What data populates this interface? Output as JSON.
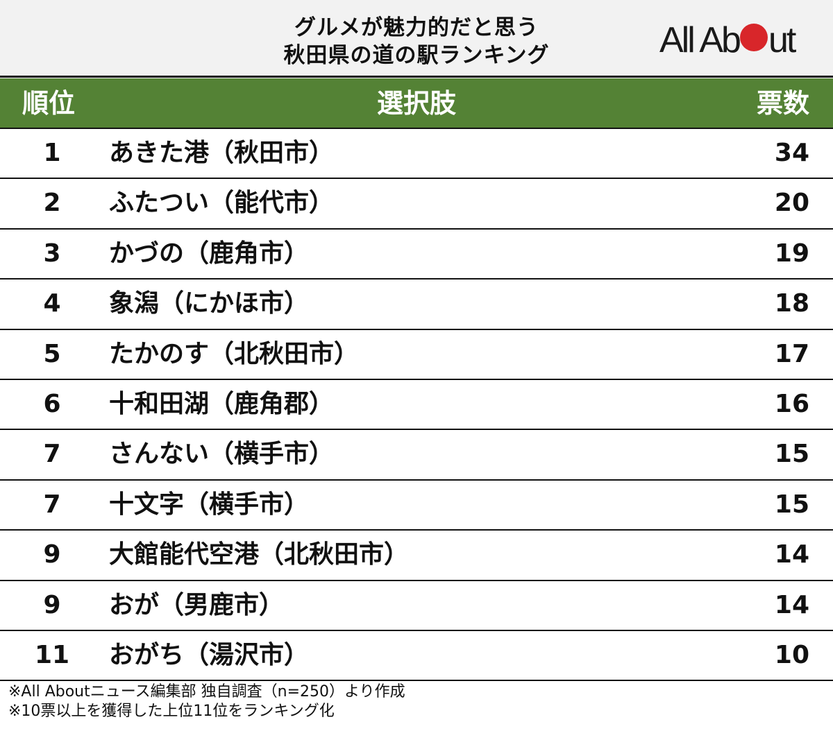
{
  "header": {
    "title_line1": "グルメが魅力的だと思う",
    "title_line2": "秋田県の道の駅ランキング",
    "logo": {
      "text_before": "All Ab",
      "text_after": "ut",
      "dot_color": "#d8262a"
    }
  },
  "table": {
    "columns": {
      "rank": "順位",
      "choice": "選択肢",
      "votes": "票数"
    },
    "header_bg": "#548235",
    "rows": [
      {
        "rank": "1",
        "name": "あきた港（秋田市）",
        "votes": "34"
      },
      {
        "rank": "2",
        "name": "ふたつい（能代市）",
        "votes": "20"
      },
      {
        "rank": "3",
        "name": "かづの（鹿角市）",
        "votes": "19"
      },
      {
        "rank": "4",
        "name": "象潟（にかほ市）",
        "votes": "18"
      },
      {
        "rank": "5",
        "name": "たかのす（北秋田市）",
        "votes": "17"
      },
      {
        "rank": "6",
        "name": "十和田湖（鹿角郡）",
        "votes": "16"
      },
      {
        "rank": "7",
        "name": "さんない（横手市）",
        "votes": "15"
      },
      {
        "rank": "7",
        "name": "十文字（横手市）",
        "votes": "15"
      },
      {
        "rank": "9",
        "name": "大館能代空港（北秋田市）",
        "votes": "14"
      },
      {
        "rank": "9",
        "name": "おが（男鹿市）",
        "votes": "14"
      },
      {
        "rank": "11",
        "name": "おがち（湯沢市）",
        "votes": "10"
      }
    ]
  },
  "footer": {
    "note1": "※All Aboutニュース編集部 独自調査（n=250）より作成",
    "note2": "※10票以上を獲得した上位11位をランキング化"
  }
}
